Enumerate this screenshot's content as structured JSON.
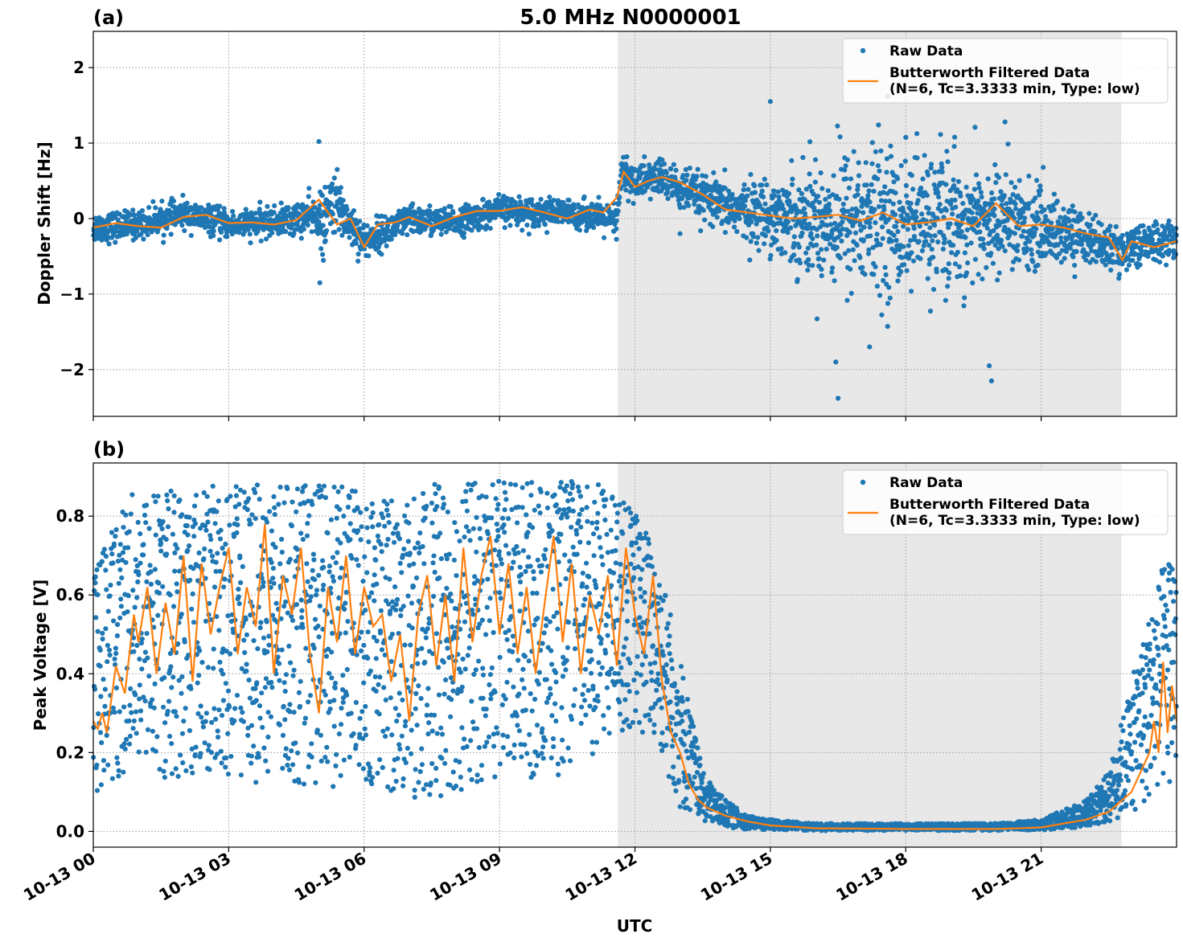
{
  "figure": {
    "title": "5.0 MHz N0000001",
    "xlabel": "UTC",
    "x_tick_labels": [
      "10-13 00",
      "10-13 03",
      "10-13 06",
      "10-13 09",
      "10-13 12",
      "10-13 15",
      "10-13 18",
      "10-13 21"
    ],
    "shaded_interval_hours": [
      11.62,
      22.78
    ],
    "colors": {
      "raw": "#1f77b4",
      "filtered": "#ff7f0e",
      "shade": "#e8e8e8",
      "grid": "#b0b0b0"
    },
    "grid": true
  },
  "legend": {
    "raw_label": "Raw Data",
    "filtered_label_line1": "Butterworth Filtered Data",
    "filtered_label_line2": "(N=6, Tc=3.3333 min, Type: low)",
    "placement": "upper-right"
  },
  "chart_data": [
    {
      "type": "scatter",
      "panel_label": "(a)",
      "title": "5.0 MHz N0000001",
      "xlabel": "",
      "ylabel": "Doppler Shift [Hz]",
      "xlim_hours": [
        0,
        24
      ],
      "ylim": [
        -2.62,
        2.48
      ],
      "y_ticks": [
        -2,
        -1,
        0,
        1,
        2
      ],
      "y_tick_labels": [
        "−2",
        "−1",
        "0",
        "1",
        "2"
      ],
      "series": [
        {
          "name": "Raw Data",
          "style": "points",
          "x_hours": [
            0,
            1,
            2,
            3,
            4,
            5,
            5.1,
            5.3,
            6,
            7,
            8,
            9,
            10,
            11,
            11.6,
            11.7,
            12,
            12.6,
            13,
            14,
            15,
            16,
            16.5,
            17,
            17.5,
            18,
            19,
            20,
            21,
            22,
            22.7,
            23,
            24
          ],
          "y_center": [
            -0.12,
            -0.08,
            0.06,
            -0.08,
            -0.05,
            0.05,
            -0.15,
            0.25,
            -0.3,
            -0.02,
            -0.05,
            0.12,
            0.08,
            0.05,
            -0.05,
            0.62,
            0.48,
            0.55,
            0.38,
            0.15,
            0.05,
            -0.02,
            0.0,
            0.0,
            -0.02,
            -0.02,
            -0.05,
            -0.05,
            -0.12,
            -0.25,
            -0.45,
            -0.35,
            -0.28
          ],
          "y_spread": [
            0.22,
            0.2,
            0.2,
            0.2,
            0.2,
            0.28,
            0.5,
            0.45,
            0.25,
            0.22,
            0.2,
            0.2,
            0.2,
            0.2,
            0.25,
            0.3,
            0.28,
            0.28,
            0.3,
            0.35,
            0.5,
            0.85,
            1.0,
            1.1,
            1.05,
            1.0,
            0.9,
            0.8,
            0.55,
            0.35,
            0.3,
            0.3,
            0.3
          ],
          "outliers": [
            [
              5.0,
              1.02
            ],
            [
              5.02,
              -0.85
            ],
            [
              15.0,
              1.55
            ],
            [
              16.5,
              -2.38
            ],
            [
              16.45,
              -1.9
            ],
            [
              17.6,
              1.62
            ],
            [
              17.2,
              -1.7
            ],
            [
              19.3,
              -1.05
            ],
            [
              19.9,
              -2.15
            ],
            [
              19.85,
              -1.95
            ],
            [
              20.2,
              1.28
            ],
            [
              13.0,
              -0.2
            ]
          ]
        },
        {
          "name": "Butterworth Filtered Data",
          "style": "line",
          "x_hours": [
            0,
            0.5,
            1,
            1.5,
            2,
            2.5,
            3,
            3.5,
            4,
            4.5,
            5,
            5.2,
            5.4,
            5.7,
            6,
            6.3,
            6.7,
            7,
            7.5,
            8,
            8.5,
            9,
            9.5,
            10,
            10.5,
            11,
            11.3,
            11.6,
            11.75,
            12,
            12.3,
            12.6,
            13,
            13.5,
            14,
            14.5,
            15,
            15.5,
            16,
            16.5,
            17,
            17.5,
            18,
            18.5,
            19,
            19.5,
            20,
            20.5,
            21,
            21.5,
            22,
            22.5,
            22.8,
            23,
            23.5,
            24
          ],
          "y": [
            -0.12,
            -0.06,
            -0.1,
            -0.12,
            0.02,
            0.05,
            -0.06,
            -0.05,
            -0.08,
            -0.02,
            0.25,
            0.08,
            -0.08,
            0.0,
            -0.38,
            -0.08,
            -0.05,
            0.02,
            -0.1,
            0.02,
            0.1,
            0.1,
            0.15,
            0.08,
            0.0,
            0.12,
            0.08,
            0.28,
            0.62,
            0.42,
            0.5,
            0.55,
            0.48,
            0.32,
            0.12,
            0.08,
            0.04,
            0.0,
            0.02,
            0.05,
            -0.03,
            0.08,
            -0.08,
            -0.05,
            0.0,
            -0.1,
            0.2,
            -0.1,
            -0.08,
            -0.12,
            -0.2,
            -0.25,
            -0.55,
            -0.3,
            -0.38,
            -0.3
          ]
        }
      ]
    },
    {
      "type": "scatter",
      "panel_label": "(b)",
      "title": "",
      "xlabel": "UTC",
      "ylabel": "Peak Voltage [V]",
      "xlim_hours": [
        0,
        24
      ],
      "ylim": [
        -0.04,
        0.935
      ],
      "y_ticks": [
        0.0,
        0.2,
        0.4,
        0.6,
        0.8
      ],
      "y_tick_labels": [
        "0.0",
        "0.2",
        "0.4",
        "0.6",
        "0.8"
      ],
      "series": [
        {
          "name": "Raw Data",
          "style": "points",
          "x_hours": [
            0,
            0.3,
            0.8,
            1.5,
            2.5,
            3.5,
            4.5,
            5.5,
            6.5,
            7.0,
            7.5,
            8.5,
            9.5,
            10.5,
            11.2,
            11.6,
            12.0,
            12.5,
            13.0,
            13.5,
            14.0,
            14.5,
            15,
            16,
            18,
            20,
            21,
            22,
            22.5,
            23,
            23.5,
            24
          ],
          "y_low": [
            0.08,
            0.12,
            0.15,
            0.12,
            0.13,
            0.12,
            0.12,
            0.1,
            0.1,
            0.06,
            0.08,
            0.1,
            0.1,
            0.15,
            0.2,
            0.25,
            0.25,
            0.2,
            0.05,
            0.02,
            0.01,
            0.005,
            0.003,
            0.002,
            0.002,
            0.002,
            0.003,
            0.01,
            0.02,
            0.04,
            0.08,
            0.1
          ],
          "y_high": [
            0.65,
            0.75,
            0.86,
            0.88,
            0.88,
            0.88,
            0.88,
            0.88,
            0.86,
            0.84,
            0.88,
            0.89,
            0.89,
            0.89,
            0.88,
            0.85,
            0.82,
            0.72,
            0.45,
            0.15,
            0.08,
            0.04,
            0.03,
            0.02,
            0.02,
            0.02,
            0.03,
            0.08,
            0.15,
            0.38,
            0.6,
            0.8
          ]
        },
        {
          "name": "Butterworth Filtered Data",
          "style": "line",
          "x_hours": [
            0,
            0.1,
            0.2,
            0.3,
            0.5,
            0.7,
            0.9,
            1.0,
            1.2,
            1.4,
            1.6,
            1.8,
            2.0,
            2.2,
            2.4,
            2.6,
            2.8,
            3.0,
            3.2,
            3.4,
            3.6,
            3.8,
            4.0,
            4.2,
            4.4,
            4.6,
            4.8,
            5.0,
            5.2,
            5.4,
            5.6,
            5.8,
            6.0,
            6.2,
            6.4,
            6.6,
            6.8,
            7.0,
            7.2,
            7.4,
            7.6,
            7.8,
            8.0,
            8.2,
            8.4,
            8.6,
            8.8,
            9.0,
            9.2,
            9.4,
            9.6,
            9.8,
            10.0,
            10.2,
            10.4,
            10.6,
            10.8,
            11.0,
            11.2,
            11.4,
            11.6,
            11.8,
            12.0,
            12.2,
            12.4,
            12.6,
            12.8,
            13.0,
            13.2,
            13.4,
            13.6,
            14.0,
            14.5,
            15,
            16,
            18,
            20,
            21,
            21.5,
            22,
            22.5,
            22.8,
            23.0,
            23.2,
            23.4,
            23.5,
            23.6,
            23.7,
            23.8,
            23.9,
            24.0
          ],
          "y": [
            0.28,
            0.26,
            0.3,
            0.25,
            0.42,
            0.35,
            0.55,
            0.48,
            0.62,
            0.4,
            0.58,
            0.45,
            0.7,
            0.38,
            0.68,
            0.5,
            0.62,
            0.72,
            0.45,
            0.62,
            0.52,
            0.78,
            0.4,
            0.65,
            0.55,
            0.72,
            0.45,
            0.3,
            0.62,
            0.48,
            0.7,
            0.45,
            0.62,
            0.52,
            0.55,
            0.38,
            0.5,
            0.28,
            0.55,
            0.65,
            0.42,
            0.6,
            0.38,
            0.72,
            0.48,
            0.65,
            0.75,
            0.5,
            0.68,
            0.45,
            0.62,
            0.4,
            0.58,
            0.75,
            0.48,
            0.68,
            0.4,
            0.6,
            0.5,
            0.65,
            0.42,
            0.72,
            0.55,
            0.45,
            0.65,
            0.38,
            0.25,
            0.2,
            0.12,
            0.08,
            0.06,
            0.04,
            0.025,
            0.015,
            0.008,
            0.006,
            0.006,
            0.01,
            0.02,
            0.03,
            0.05,
            0.08,
            0.1,
            0.15,
            0.2,
            0.28,
            0.2,
            0.43,
            0.25,
            0.37,
            0.28
          ]
        }
      ]
    }
  ]
}
